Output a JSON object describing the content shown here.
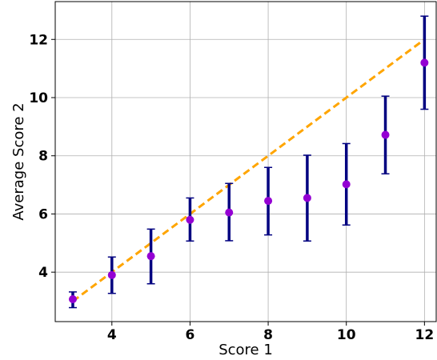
{
  "chart_data": {
    "type": "scatter",
    "title": "",
    "xlabel": "Score 1",
    "ylabel": "Average Score 2",
    "xlim": [
      2.55,
      12.3
    ],
    "ylim": [
      2.3,
      13.3
    ],
    "x_ticks": [
      4,
      6,
      8,
      10,
      12
    ],
    "y_ticks": [
      4,
      6,
      8,
      10,
      12
    ],
    "grid": true,
    "legend": "none",
    "series": [
      {
        "type": "errorbar",
        "marker_color": "#9400d3",
        "errorbar_color": "#000080",
        "points": [
          {
            "x": 3,
            "y": 3.07,
            "ymin": 2.78,
            "ymax": 3.32
          },
          {
            "x": 4,
            "y": 3.9,
            "ymin": 3.27,
            "ymax": 4.52
          },
          {
            "x": 5,
            "y": 4.55,
            "ymin": 3.6,
            "ymax": 5.48
          },
          {
            "x": 6,
            "y": 5.8,
            "ymin": 5.07,
            "ymax": 6.55
          },
          {
            "x": 7,
            "y": 6.05,
            "ymin": 5.08,
            "ymax": 7.05
          },
          {
            "x": 8,
            "y": 6.45,
            "ymin": 5.28,
            "ymax": 7.6
          },
          {
            "x": 9,
            "y": 6.55,
            "ymin": 5.07,
            "ymax": 8.02
          },
          {
            "x": 10,
            "y": 7.02,
            "ymin": 5.62,
            "ymax": 8.42
          },
          {
            "x": 11,
            "y": 8.72,
            "ymin": 7.38,
            "ymax": 10.05
          },
          {
            "x": 12,
            "y": 11.2,
            "ymin": 9.6,
            "ymax": 12.8
          }
        ]
      },
      {
        "type": "reference-line",
        "style": "dashed",
        "color": "#ffa500",
        "x": [
          3,
          12
        ],
        "y": [
          3,
          12
        ]
      }
    ]
  }
}
